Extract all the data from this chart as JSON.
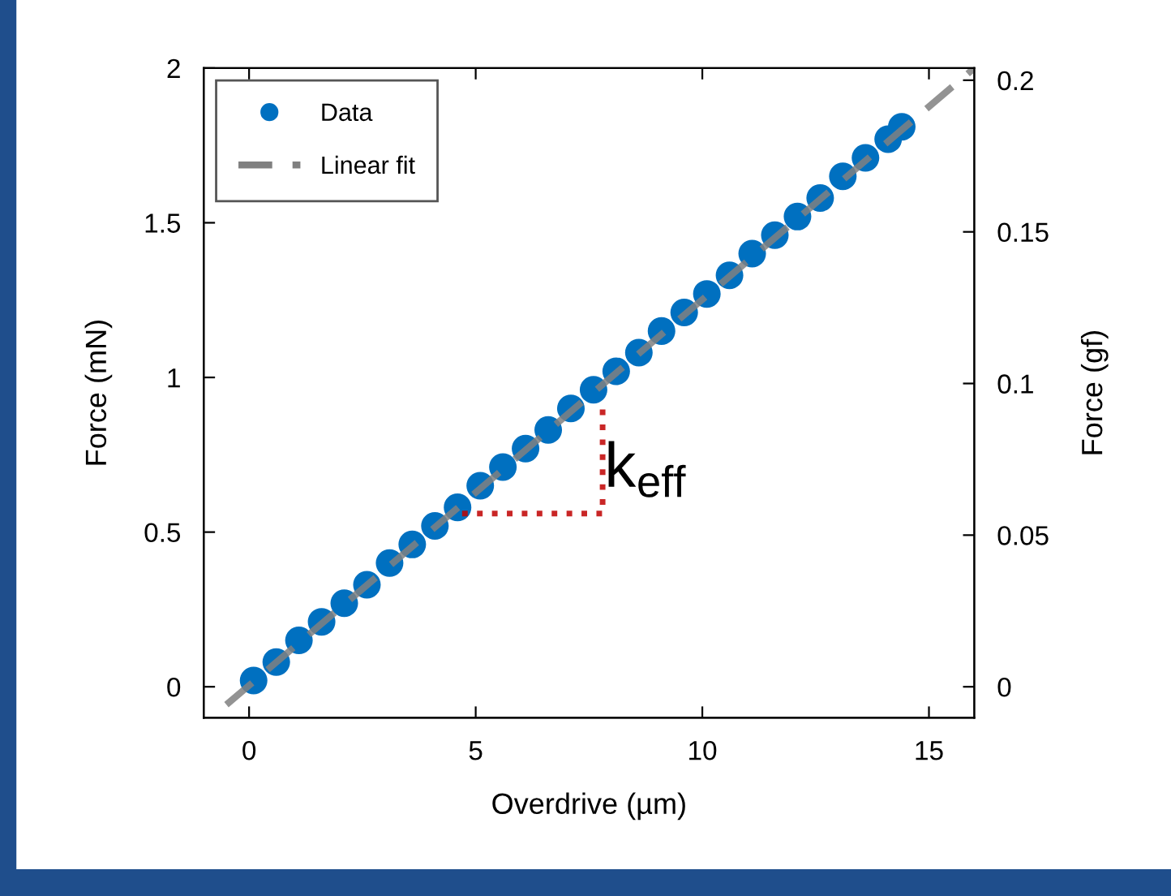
{
  "chart_data": {
    "type": "scatter",
    "xlabel": "Overdrive (µm)",
    "ylabel": "Force (mN)",
    "y2label": "Force (gf)",
    "xlim": [
      -1,
      16
    ],
    "xticks": [
      0,
      5,
      10,
      15
    ],
    "ylim": [
      -0.1,
      2.0
    ],
    "yticks": [
      0,
      0.5,
      1,
      1.5,
      2
    ],
    "y2lim": [
      -0.0102,
      0.204
    ],
    "y2ticks": [
      0,
      0.05,
      0.1,
      0.15,
      0.2
    ],
    "legend": "top left",
    "grid": false,
    "marker": "circle",
    "annotations": [
      "k$_{eff}$"
    ],
    "series": [
      {
        "name": "Data",
        "color": "#0070c0",
        "x": [
          0.1,
          0.6,
          1.1,
          1.6,
          2.1,
          2.6,
          3.1,
          3.6,
          4.1,
          4.6,
          5.1,
          5.6,
          6.1,
          6.6,
          7.1,
          7.6,
          8.1,
          8.6,
          9.1,
          9.6,
          10.1,
          10.6,
          11.1,
          11.6,
          12.1,
          12.6,
          13.1,
          13.6,
          14.1,
          14.4
        ],
        "values": [
          0.02,
          0.08,
          0.15,
          0.21,
          0.27,
          0.33,
          0.4,
          0.46,
          0.52,
          0.58,
          0.65,
          0.71,
          0.77,
          0.83,
          0.9,
          0.96,
          1.02,
          1.08,
          1.15,
          1.21,
          1.27,
          1.33,
          1.4,
          1.46,
          1.52,
          1.58,
          1.65,
          1.71,
          1.77,
          1.81
        ]
      },
      {
        "name": "Linear fit",
        "type": "line",
        "color": "#808080",
        "line_style": "dashed",
        "marker": "none",
        "x": [
          -0.5,
          16
        ],
        "values": [
          -0.058,
          2.0
        ]
      },
      {
        "type": "line",
        "color": "#c00000",
        "line_style": "dotted",
        "marker": "none",
        "x": [
          4.7,
          7.8,
          7.8
        ],
        "values": [
          0.56,
          0.56,
          0.91
        ]
      }
    ]
  }
}
